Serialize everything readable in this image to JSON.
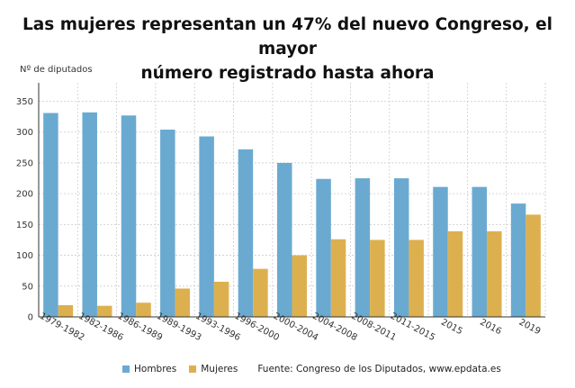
{
  "title_line1": "Las mujeres representan un 47% del nuevo Congreso, el mayor",
  "title_line2": "número registrado hasta ahora",
  "legend": {
    "hombres": "Hombres",
    "mujeres": "Mujeres",
    "source": "Fuente: Congreso de los Diputados, www.epdata.es"
  },
  "colors": {
    "hombres": "#6aaad1",
    "mujeres": "#ddb04f",
    "grid": "#cccccc",
    "axis": "#333333"
  },
  "chart_data": {
    "type": "bar",
    "ylabel": "Nº de diputados",
    "ylim": [
      0,
      380
    ],
    "yticks": [
      0,
      50,
      100,
      150,
      200,
      250,
      300,
      350
    ],
    "grid": true,
    "legend_position": "bottom",
    "categories": [
      "1979-1982",
      "1982-1986",
      "1986-1989",
      "1989-1993",
      "1993-1996",
      "1996-2000",
      "2000-2004",
      "2004-2008",
      "2008-2011",
      "2011-2015",
      "2015",
      "2016",
      "2019"
    ],
    "series": [
      {
        "name": "Hombres",
        "values": [
          331,
          332,
          327,
          304,
          293,
          272,
          250,
          224,
          225,
          225,
          211,
          211,
          184
        ]
      },
      {
        "name": "Mujeres",
        "values": [
          19,
          18,
          23,
          46,
          57,
          78,
          100,
          126,
          125,
          125,
          139,
          139,
          166
        ]
      }
    ]
  }
}
